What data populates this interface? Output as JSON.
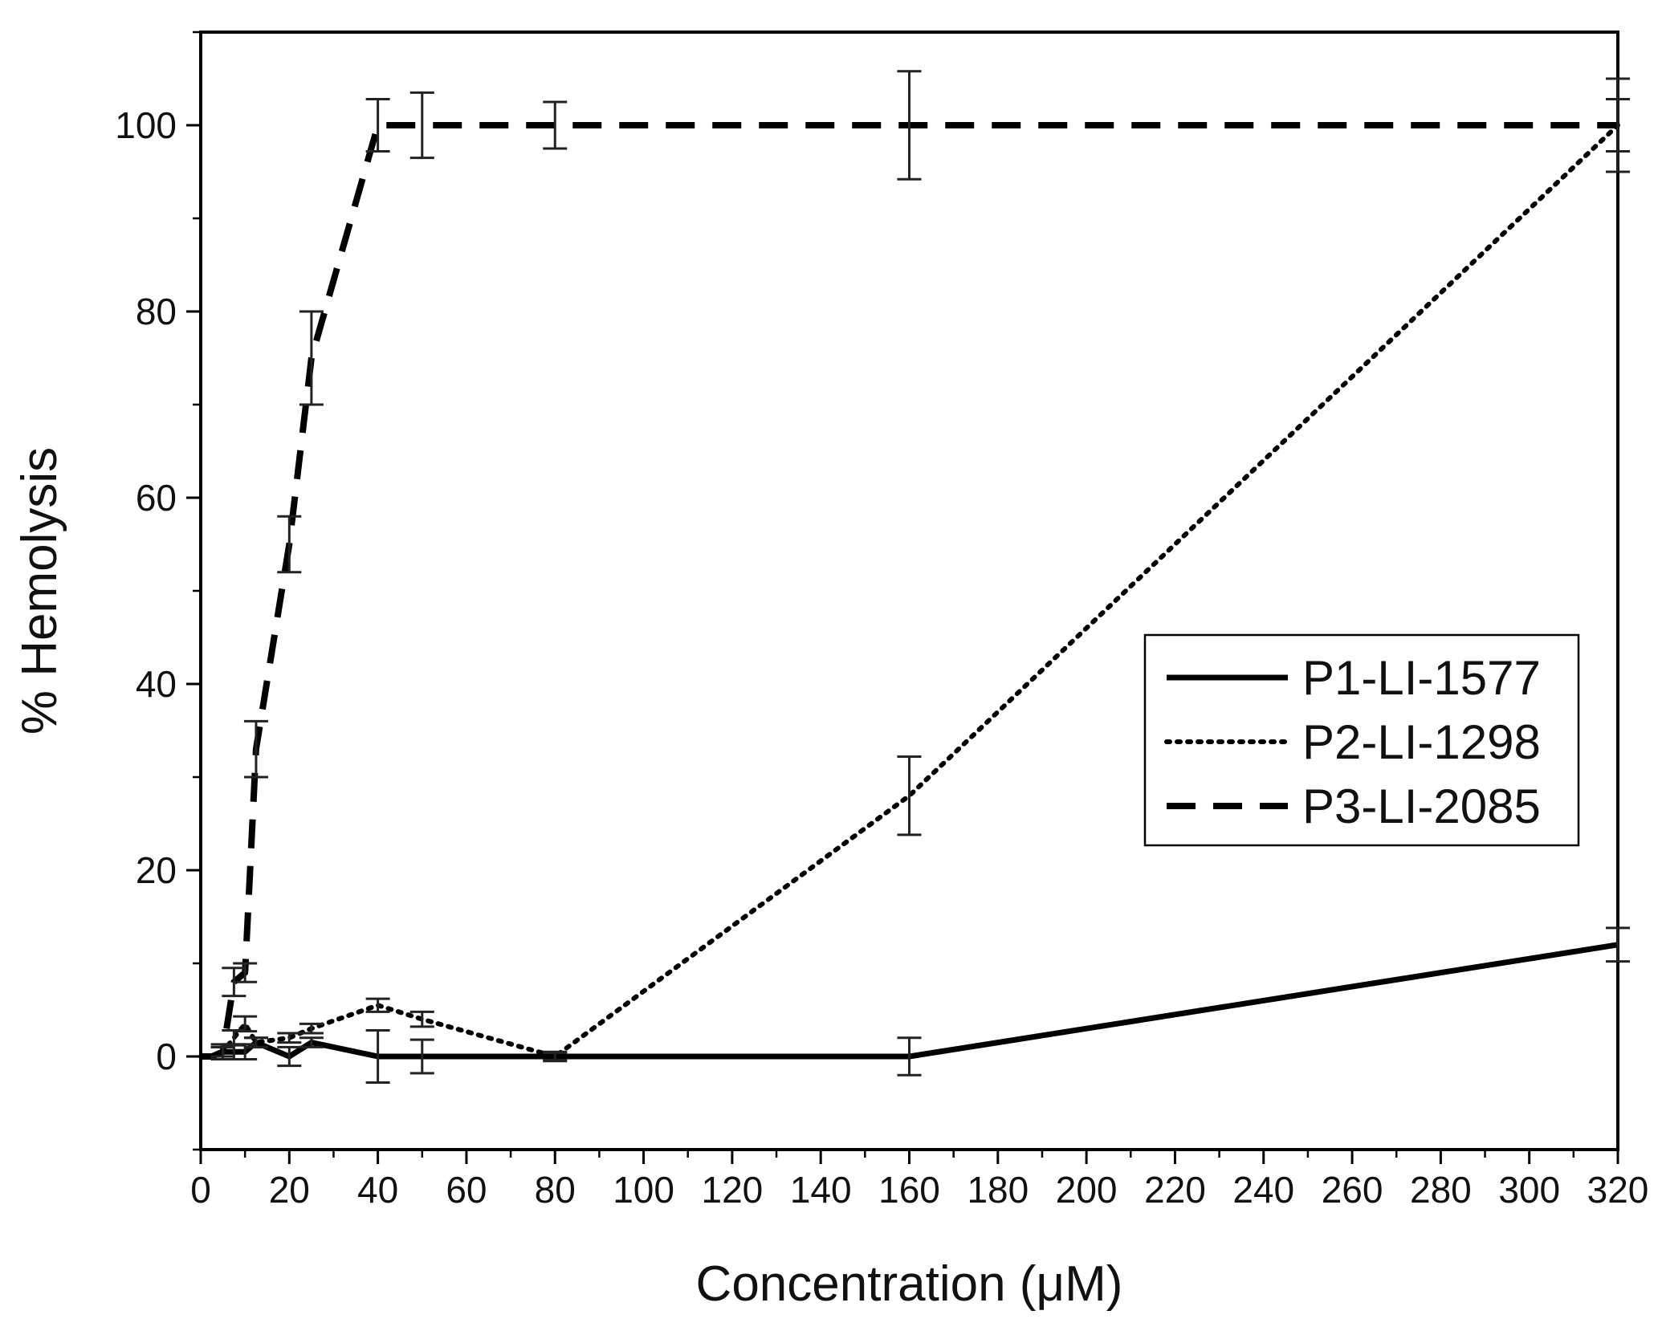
{
  "chart_data": {
    "type": "line",
    "title": "",
    "xlabel": "Concentration (μM)",
    "ylabel": "% Hemolysis",
    "xlim": [
      0,
      320
    ],
    "ylim": [
      -10,
      110
    ],
    "xticks": [
      0,
      20,
      40,
      60,
      80,
      100,
      120,
      140,
      160,
      180,
      200,
      220,
      240,
      260,
      280,
      300,
      320
    ],
    "yticks": [
      0,
      20,
      40,
      60,
      80,
      100
    ],
    "grid": false,
    "legend_position": "right-middle",
    "series": [
      {
        "name": "P1-LI-1577",
        "style": "solid",
        "x": [
          0,
          2.5,
          5,
          7.5,
          10,
          12.5,
          20,
          25,
          40,
          50,
          80,
          160,
          320
        ],
        "y": [
          0,
          0,
          0.5,
          0.5,
          0.5,
          1.5,
          0,
          1.5,
          0,
          0,
          0,
          0,
          12
        ],
        "err": [
          0,
          0,
          0.8,
          0.8,
          0.8,
          0.5,
          1.0,
          0.5,
          2.8,
          1.8,
          0.5,
          2.0,
          1.8
        ]
      },
      {
        "name": "P2-LI-1298",
        "style": "dotted",
        "x": [
          0,
          2.5,
          5,
          7.5,
          10,
          12.5,
          20,
          25,
          40,
          50,
          80,
          160,
          320
        ],
        "y": [
          0,
          0,
          0.5,
          2.0,
          3.5,
          1.5,
          2.0,
          3.0,
          5.5,
          4.0,
          0,
          28,
          100
        ],
        "err": [
          0,
          0,
          0.5,
          0.8,
          0.8,
          0.5,
          0.5,
          0.5,
          0.7,
          0.8,
          0.4,
          4.2,
          2.8
        ]
      },
      {
        "name": "P3-LI-2085",
        "style": "dashed",
        "x": [
          0,
          2.5,
          5,
          7.5,
          10,
          12.5,
          20,
          25,
          40,
          50,
          80,
          160,
          320
        ],
        "y": [
          0,
          0,
          0.5,
          8,
          9,
          33,
          55,
          75,
          100,
          100,
          100,
          100,
          100
        ],
        "err": [
          0,
          0,
          0.5,
          1.5,
          1.0,
          3.0,
          3.0,
          5.0,
          2.8,
          3.5,
          2.5,
          5.8,
          5.0
        ]
      }
    ]
  },
  "colors": {
    "line": "#000000",
    "errorbar": "#222222",
    "axis": "#000000",
    "background": "#ffffff"
  }
}
